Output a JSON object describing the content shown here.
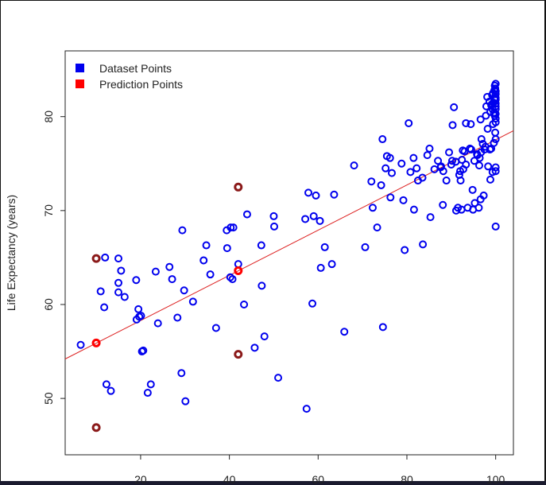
{
  "chart_data": {
    "type": "scatter",
    "title": "",
    "xlabel": "",
    "ylabel": "Life Expectancy (years)",
    "xlim": [
      3,
      104
    ],
    "ylim": [
      44,
      87
    ],
    "xticks": [
      20,
      40,
      60,
      80,
      100
    ],
    "yticks": [
      50,
      60,
      70,
      80
    ],
    "grid": false,
    "legend_position": "top-left",
    "legend": [
      {
        "label": "Dataset Points",
        "color": "#0000ee"
      },
      {
        "label": "Prediction Points",
        "color": "#ff0000"
      }
    ],
    "regression_line": {
      "color": "#dd2222",
      "x": [
        3,
        104
      ],
      "y": [
        54.2,
        78.5
      ]
    },
    "series": [
      {
        "name": "Dataset Points",
        "color": "#0000ee",
        "points": [
          [
            6.5,
            55.7
          ],
          [
            11,
            61.4
          ],
          [
            11.8,
            59.7
          ],
          [
            12,
            65
          ],
          [
            12.3,
            51.5
          ],
          [
            13.3,
            50.8
          ],
          [
            15,
            64.9
          ],
          [
            15,
            62.3
          ],
          [
            15.6,
            63.6
          ],
          [
            15,
            61.3
          ],
          [
            16.4,
            60.8
          ],
          [
            19,
            62.6
          ],
          [
            19.1,
            58.4
          ],
          [
            19.5,
            59.5
          ],
          [
            19.7,
            58.7
          ],
          [
            20.1,
            58.8
          ],
          [
            20.3,
            55
          ],
          [
            20.6,
            55.1
          ],
          [
            21.6,
            50.6
          ],
          [
            22.3,
            51.5
          ],
          [
            23.4,
            63.5
          ],
          [
            23.9,
            58
          ],
          [
            26.5,
            64
          ],
          [
            27.1,
            62.7
          ],
          [
            28.3,
            58.6
          ],
          [
            29.2,
            52.7
          ],
          [
            29.4,
            67.9
          ],
          [
            29.8,
            61.5
          ],
          [
            30.1,
            49.7
          ],
          [
            31.8,
            60.3
          ],
          [
            34.2,
            64.7
          ],
          [
            34.8,
            66.3
          ],
          [
            35.7,
            63.2
          ],
          [
            37,
            57.5
          ],
          [
            39.4,
            67.9
          ],
          [
            39.5,
            66
          ],
          [
            40.3,
            68.2
          ],
          [
            40.9,
            68.2
          ],
          [
            40.2,
            62.9
          ],
          [
            40.7,
            62.7
          ],
          [
            42,
            64.3
          ],
          [
            43.3,
            60
          ],
          [
            44,
            69.6
          ],
          [
            45.7,
            55.4
          ],
          [
            47.2,
            66.3
          ],
          [
            47.3,
            62
          ],
          [
            47.9,
            56.6
          ],
          [
            50,
            69.4
          ],
          [
            50.1,
            68.3
          ],
          [
            51,
            52.2
          ],
          [
            57.1,
            69.1
          ],
          [
            57.4,
            48.9
          ],
          [
            57.8,
            71.9
          ],
          [
            58.7,
            60.1
          ],
          [
            59,
            69.4
          ],
          [
            59.5,
            71.6
          ],
          [
            60.4,
            68.9
          ],
          [
            60.6,
            63.9
          ],
          [
            61.5,
            66.1
          ],
          [
            63.1,
            64.3
          ],
          [
            63.6,
            71.7
          ],
          [
            65.9,
            57.1
          ],
          [
            68.1,
            74.8
          ],
          [
            70.6,
            66.1
          ],
          [
            72,
            73.1
          ],
          [
            72.3,
            70.3
          ],
          [
            73.3,
            68.2
          ],
          [
            74.2,
            72.7
          ],
          [
            74.5,
            77.6
          ],
          [
            74.6,
            57.6
          ],
          [
            75.2,
            74.5
          ],
          [
            75.5,
            75.8
          ],
          [
            76.2,
            75.6
          ],
          [
            76.3,
            71.4
          ],
          [
            76.6,
            74
          ],
          [
            78.8,
            75
          ],
          [
            79.2,
            71.1
          ],
          [
            79.5,
            65.8
          ],
          [
            80.4,
            79.3
          ],
          [
            80.8,
            74.1
          ],
          [
            81.5,
            75.6
          ],
          [
            81.6,
            70.1
          ],
          [
            82.2,
            74.5
          ],
          [
            82.5,
            73.2
          ],
          [
            83.5,
            73.5
          ],
          [
            83.6,
            66.4
          ],
          [
            84.6,
            75.9
          ],
          [
            85.1,
            76.6
          ],
          [
            85.3,
            69.3
          ],
          [
            86.2,
            74.4
          ],
          [
            87,
            75.3
          ],
          [
            87.6,
            74.6
          ],
          [
            87.7,
            74.7
          ],
          [
            88.1,
            70.6
          ],
          [
            88.2,
            74.2
          ],
          [
            88.9,
            73.2
          ],
          [
            89.5,
            76.2
          ],
          [
            90,
            74.9
          ],
          [
            90.2,
            75.3
          ],
          [
            90.3,
            79.1
          ],
          [
            90.6,
            81
          ],
          [
            91.1,
            70
          ],
          [
            91,
            75.2
          ],
          [
            91.5,
            70.3
          ],
          [
            91.8,
            73.8
          ],
          [
            92,
            74.2
          ],
          [
            92.1,
            73.2
          ],
          [
            92.3,
            70.1
          ],
          [
            92.4,
            75.4
          ],
          [
            92.6,
            76.4
          ],
          [
            92.7,
            74.4
          ],
          [
            93,
            76.3
          ],
          [
            93.3,
            79.3
          ],
          [
            93.3,
            74.9
          ],
          [
            93.7,
            70.3
          ],
          [
            94.2,
            76.6
          ],
          [
            94.4,
            79.2
          ],
          [
            94.5,
            76.5
          ],
          [
            94.8,
            72.2
          ],
          [
            94.9,
            70.1
          ],
          [
            95.2,
            75.3
          ],
          [
            95.3,
            70.8
          ],
          [
            95.8,
            76
          ],
          [
            95.9,
            75.9
          ],
          [
            96.2,
            70.3
          ],
          [
            96.3,
            74.8
          ],
          [
            96.4,
            75.6
          ],
          [
            96.6,
            79.7
          ],
          [
            96.6,
            71.2
          ],
          [
            96.7,
            76.2
          ],
          [
            96.8,
            77.6
          ],
          [
            97.1,
            77.1
          ],
          [
            97.3,
            71.6
          ],
          [
            97.5,
            76.5
          ],
          [
            97.7,
            76.8
          ],
          [
            97.8,
            80.1
          ],
          [
            97.9,
            81.1
          ],
          [
            98.1,
            82.1
          ],
          [
            98.2,
            78.7
          ],
          [
            98.3,
            74.7
          ],
          [
            98.6,
            81.6
          ],
          [
            98.7,
            76.5
          ],
          [
            98.8,
            73.3
          ],
          [
            98.8,
            80.5
          ],
          [
            99,
            81.2
          ],
          [
            99,
            76.6
          ],
          [
            99.1,
            81.3
          ],
          [
            99.2,
            82.3
          ],
          [
            99.3,
            74.1
          ],
          [
            99.3,
            80.8
          ],
          [
            99.4,
            79.2
          ],
          [
            99.4,
            82.5
          ],
          [
            99.5,
            81.5
          ],
          [
            99.6,
            80.4
          ],
          [
            99.6,
            77.2
          ],
          [
            99.7,
            81.9
          ],
          [
            99.7,
            82.8
          ],
          [
            99.8,
            83.3
          ],
          [
            99.8,
            80.1
          ],
          [
            99.9,
            78.3
          ],
          [
            99.9,
            83
          ],
          [
            100,
            81.8
          ],
          [
            100,
            82.4
          ],
          [
            100,
            68.3
          ],
          [
            100,
            74.6
          ],
          [
            100,
            74.2
          ],
          [
            100,
            77.6
          ],
          [
            100,
            79.4
          ],
          [
            100,
            80.8
          ],
          [
            100,
            81.4
          ],
          [
            100,
            82
          ],
          [
            100,
            82.7
          ],
          [
            100,
            83.5
          ],
          [
            100,
            79.8
          ],
          [
            100,
            81.1
          ],
          [
            100,
            80.3
          ]
        ]
      },
      {
        "name": "Prediction Points",
        "color": "#ff0000",
        "points": [
          [
            10,
            55.9
          ],
          [
            42,
            63.6
          ]
        ]
      },
      {
        "name": "",
        "color": "#8b1a1a",
        "points": [
          [
            10,
            64.9
          ],
          [
            10,
            46.9
          ],
          [
            42,
            72.5
          ],
          [
            42,
            54.7
          ]
        ]
      }
    ]
  }
}
